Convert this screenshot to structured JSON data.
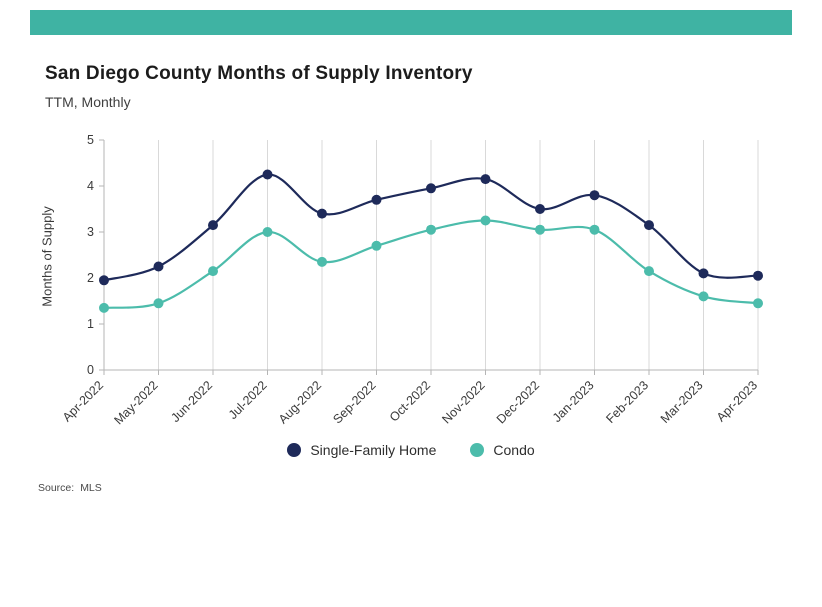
{
  "accent_color": "#3fb3a3",
  "header": {
    "title": "San Diego County Months of Supply Inventory",
    "subtitle": "TTM, Monthly"
  },
  "chart_data": {
    "type": "line",
    "title": "San Diego County Months of Supply Inventory",
    "subtitle": "TTM, Monthly",
    "xlabel": "",
    "ylabel": "Months of Supply",
    "ylim": [
      0,
      5
    ],
    "yticks": [
      0,
      1,
      2,
      3,
      4,
      5
    ],
    "grid": "vertical",
    "legend_position": "bottom",
    "categories": [
      "Apr-2022",
      "May-2022",
      "Jun-2022",
      "Jul-2022",
      "Aug-2022",
      "Sep-2022",
      "Oct-2022",
      "Nov-2022",
      "Dec-2022",
      "Jan-2023",
      "Feb-2023",
      "Mar-2023",
      "Apr-2023"
    ],
    "series": [
      {
        "name": "Single-Family Home",
        "color": "#1e2a5a",
        "values": [
          1.95,
          2.25,
          3.15,
          4.25,
          3.4,
          3.7,
          3.95,
          4.15,
          3.5,
          3.8,
          3.15,
          2.1,
          2.05
        ]
      },
      {
        "name": "Condo",
        "color": "#4cbcab",
        "values": [
          1.35,
          1.45,
          2.15,
          3.0,
          2.35,
          2.7,
          3.05,
          3.25,
          3.05,
          3.05,
          2.15,
          1.6,
          1.45
        ]
      }
    ],
    "axis_color": "#b5b5b5",
    "grid_color": "#d9d9d9",
    "tick_label_color": "#3a3a3a"
  },
  "footer": {
    "source_label": "Source:",
    "source_value": "MLS"
  }
}
